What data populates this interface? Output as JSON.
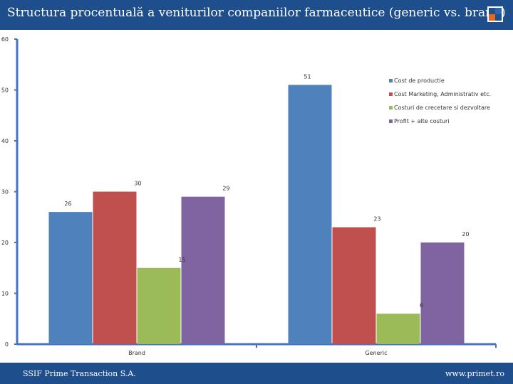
{
  "header": {
    "title": "Structura procentuală a veniturilor companiilor farmaceutice (generic vs. brand)"
  },
  "footer": {
    "left": "SSIF Prime Transaction S.A.",
    "right": "www.primet.ro"
  },
  "colors": {
    "bar": "#1f4e8c",
    "axis": "#4472c4"
  },
  "chart_data": {
    "type": "bar",
    "title": "Structura procentuală a veniturilor companiilor farmaceutice (generic vs. brand)",
    "categories": [
      "Brand",
      "Generic"
    ],
    "series": [
      {
        "name": "Cost de productie",
        "color": "#4f81bd",
        "values": [
          26,
          51
        ]
      },
      {
        "name": "Cost Marketing, Administrativ etc.",
        "color": "#c0504d",
        "values": [
          30,
          23
        ]
      },
      {
        "name": "Costuri de crecetare si dezvoltare",
        "color": "#9bbb59",
        "values": [
          15,
          6
        ]
      },
      {
        "name": "Profit + alte costuri",
        "color": "#8064a2",
        "values": [
          29,
          20
        ]
      }
    ],
    "yticks": [
      0,
      10,
      20,
      30,
      40,
      50,
      60
    ],
    "ylim": [
      0,
      60
    ],
    "grid": false,
    "legend_position": "top-right"
  }
}
